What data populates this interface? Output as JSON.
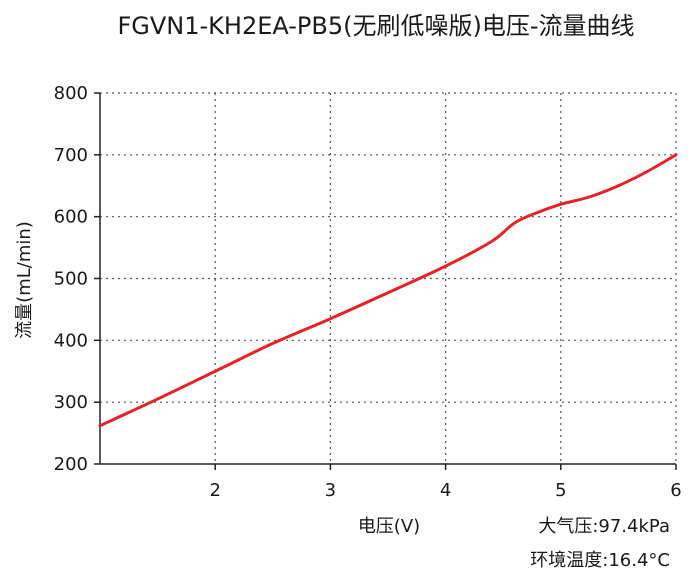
{
  "chart_data": {
    "type": "line",
    "title": "FGVN1-KH2EA-PB5(无刷低噪版)电压-流量曲线",
    "xlabel": "电压(V)",
    "ylabel": "流量(mL/min)",
    "xlim": [
      1,
      6
    ],
    "ylim": [
      200,
      800
    ],
    "x_ticks": [
      2,
      3,
      4,
      5,
      6
    ],
    "y_ticks": [
      200,
      300,
      400,
      500,
      600,
      700,
      800
    ],
    "grid": true,
    "series": [
      {
        "color": "#e8202a",
        "x": [
          1.0,
          1.5,
          2.0,
          2.5,
          3.0,
          3.5,
          4.0,
          4.4,
          4.6,
          4.8,
          5.0,
          5.25,
          5.5,
          5.75,
          6.0
        ],
        "y": [
          262,
          305,
          350,
          395,
          435,
          477,
          520,
          560,
          590,
          607,
          620,
          632,
          650,
          673,
          700
        ]
      }
    ],
    "annotations": [
      "大气压:97.4kPa",
      "环境温度:16.4°C"
    ]
  }
}
